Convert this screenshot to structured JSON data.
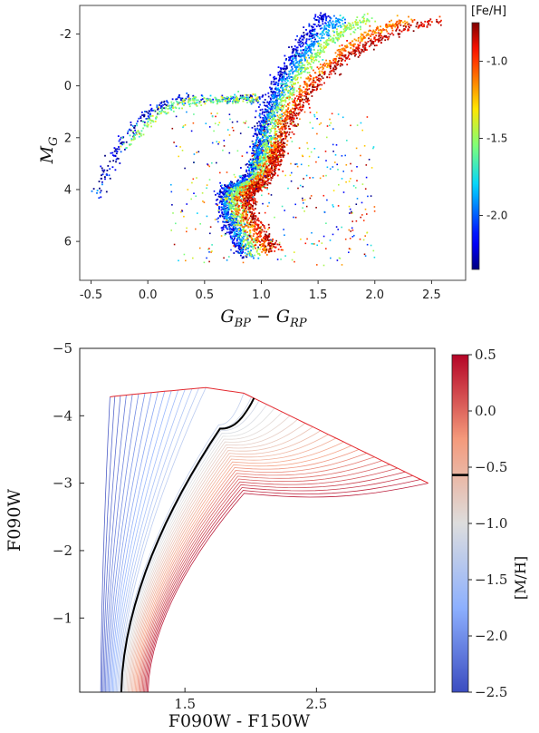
{
  "chart_data": [
    {
      "type": "scatter",
      "xlabel": "G_BP − G_RP",
      "ylabel": "M_G",
      "xlim": [
        -0.6,
        2.8
      ],
      "ylim": [
        7.5,
        -3.1
      ],
      "xticks": [
        "-0.5",
        "0.0",
        "0.5",
        "1.0",
        "1.5",
        "2.0",
        "2.5"
      ],
      "yticks": [
        "-2",
        "0",
        "2",
        "4",
        "6"
      ],
      "colorbar": {
        "label": "[Fe/H]",
        "range": [
          -2.35,
          -0.75
        ],
        "ticks": [
          "-1.0",
          "-1.5",
          "-2.0"
        ],
        "colormap": "jet"
      },
      "sequences": [
        {
          "feh": -2.2,
          "points": [
            [
              0.85,
              6.6
            ],
            [
              0.75,
              5.7
            ],
            [
              0.68,
              5.0
            ],
            [
              0.66,
              4.4
            ],
            [
              0.7,
              4.0
            ],
            [
              0.8,
              3.8
            ],
            [
              0.9,
              3.4
            ],
            [
              0.95,
              2.8
            ],
            [
              0.98,
              2.2
            ],
            [
              1.02,
              1.4
            ],
            [
              1.08,
              0.6
            ],
            [
              1.15,
              -0.2
            ],
            [
              1.25,
              -1.0
            ],
            [
              1.35,
              -1.6
            ],
            [
              1.45,
              -2.2
            ],
            [
              1.55,
              -2.7
            ]
          ]
        },
        {
          "feh": -1.9,
          "points": [
            [
              0.9,
              6.6
            ],
            [
              0.8,
              5.7
            ],
            [
              0.72,
              5.0
            ],
            [
              0.7,
              4.4
            ],
            [
              0.74,
              4.0
            ],
            [
              0.84,
              3.8
            ],
            [
              0.93,
              3.4
            ],
            [
              0.98,
              2.8
            ],
            [
              1.01,
              2.2
            ],
            [
              1.06,
              1.4
            ],
            [
              1.13,
              0.6
            ],
            [
              1.22,
              -0.2
            ],
            [
              1.33,
              -1.0
            ],
            [
              1.45,
              -1.6
            ],
            [
              1.58,
              -2.2
            ],
            [
              1.7,
              -2.6
            ]
          ]
        },
        {
          "feh": -1.5,
          "points": [
            [
              0.95,
              6.5
            ],
            [
              0.86,
              5.7
            ],
            [
              0.78,
              5.0
            ],
            [
              0.75,
              4.4
            ],
            [
              0.79,
              4.0
            ],
            [
              0.89,
              3.8
            ],
            [
              0.98,
              3.4
            ],
            [
              1.03,
              2.8
            ],
            [
              1.06,
              2.2
            ],
            [
              1.11,
              1.4
            ],
            [
              1.19,
              0.6
            ],
            [
              1.3,
              -0.2
            ],
            [
              1.44,
              -1.0
            ],
            [
              1.58,
              -1.6
            ],
            [
              1.75,
              -2.2
            ],
            [
              1.95,
              -2.6
            ]
          ]
        },
        {
          "feh": -1.1,
          "points": [
            [
              1.05,
              6.4
            ],
            [
              0.95,
              5.7
            ],
            [
              0.86,
              5.0
            ],
            [
              0.83,
              4.4
            ],
            [
              0.87,
              4.0
            ],
            [
              0.96,
              3.8
            ],
            [
              1.04,
              3.4
            ],
            [
              1.1,
              2.8
            ],
            [
              1.14,
              2.2
            ],
            [
              1.2,
              1.4
            ],
            [
              1.3,
              0.6
            ],
            [
              1.44,
              -0.2
            ],
            [
              1.62,
              -1.0
            ],
            [
              1.8,
              -1.6
            ],
            [
              2.05,
              -2.2
            ],
            [
              2.3,
              -2.5
            ]
          ]
        },
        {
          "feh": -0.85,
          "points": [
            [
              1.12,
              6.3
            ],
            [
              1.02,
              5.7
            ],
            [
              0.92,
              5.0
            ],
            [
              0.89,
              4.4
            ],
            [
              0.93,
              4.0
            ],
            [
              1.01,
              3.8
            ],
            [
              1.08,
              3.4
            ],
            [
              1.14,
              2.8
            ],
            [
              1.18,
              2.2
            ],
            [
              1.25,
              1.4
            ],
            [
              1.36,
              0.6
            ],
            [
              1.52,
              -0.2
            ],
            [
              1.72,
              -1.0
            ],
            [
              1.95,
              -1.6
            ],
            [
              2.25,
              -2.2
            ],
            [
              2.6,
              -2.5
            ]
          ]
        }
      ],
      "horizontal_branch": [
        {
          "feh": -2.2,
          "points": [
            [
              -0.45,
              4.3
            ],
            [
              -0.35,
              3.2
            ],
            [
              -0.2,
              2.0
            ],
            [
              -0.05,
              1.2
            ],
            [
              0.1,
              0.8
            ],
            [
              0.3,
              0.5
            ],
            [
              0.55,
              0.5
            ],
            [
              0.85,
              0.5
            ],
            [
              1.0,
              0.55
            ]
          ]
        },
        {
          "feh": -1.55,
          "points": [
            [
              -0.2,
              2.3
            ],
            [
              0.1,
              1.0
            ],
            [
              0.4,
              0.55
            ],
            [
              0.7,
              0.55
            ],
            [
              0.95,
              0.5
            ]
          ]
        }
      ]
    },
    {
      "type": "line",
      "xlabel": "F090W - F150W",
      "ylabel": "F090W",
      "xlim": [
        0.7,
        3.4
      ],
      "ylim": [
        0.1,
        -5.0
      ],
      "xticks": [
        "1.5",
        "2.5"
      ],
      "yticks": [
        "−5",
        "−4",
        "−3",
        "−2",
        "−1"
      ],
      "colorbar": {
        "label": "[M/H]",
        "range": [
          -2.5,
          0.5
        ],
        "ticks": [
          "0.5",
          "0.0",
          "−0.5",
          "−1.0",
          "−1.5",
          "−2.0",
          "−2.5"
        ],
        "marker_value": -0.57,
        "colormap": "coolwarm"
      },
      "tracks": {
        "metallicity_range": [
          -2.5,
          0.5
        ],
        "count": 41,
        "highlighted_metallicity": -1.2,
        "rgb_tip_metal_poor": [
          0.93,
          -4.3
        ],
        "rgb_tip_metal_rich": [
          3.35,
          -3.0
        ],
        "faint_end_color_range": [
          0.86,
          1.22
        ],
        "faint_end_mag": 0.1
      }
    }
  ]
}
